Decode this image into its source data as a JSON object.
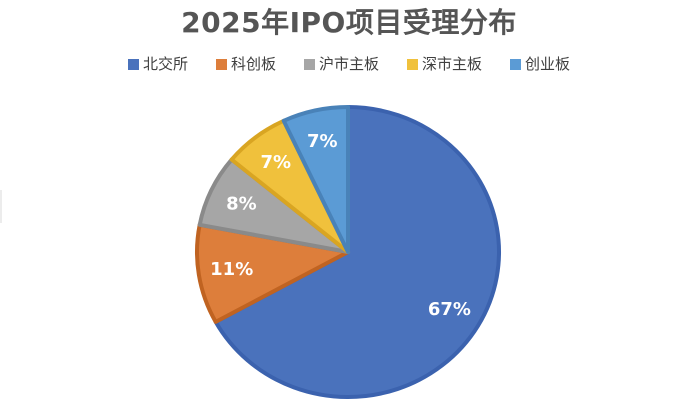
{
  "page": {
    "background": "#FFFFFF"
  },
  "chart_data": {
    "type": "pie",
    "title": "2025年IPO项目受理分布",
    "categories": [
      "北交所",
      "科创板",
      "沪市主板",
      "深市主板",
      "创业板"
    ],
    "values": [
      67,
      11,
      8,
      7,
      7
    ],
    "labels": [
      "67%",
      "11%",
      "8%",
      "7%",
      "7%"
    ],
    "unit": "percent",
    "colors": [
      "#4A72BC",
      "#DD7E3B",
      "#A6A6A6",
      "#F0C13C",
      "#5B9BD5"
    ],
    "border_colors": [
      "#3B62AE",
      "#C06321",
      "#8A8A8A",
      "#D9A522",
      "#4982B8"
    ],
    "slice_ids": [
      "beijing-stock-exchange",
      "star-market",
      "shanghai-main-board",
      "shenzhen-main-board",
      "chinext"
    ],
    "start_angle_deg": 0,
    "direction": "clockwise",
    "legend_position": "top",
    "data_label_color": "#FFFFFF",
    "title_color": "#555555",
    "legend_text_color": "#3F3F3F"
  }
}
